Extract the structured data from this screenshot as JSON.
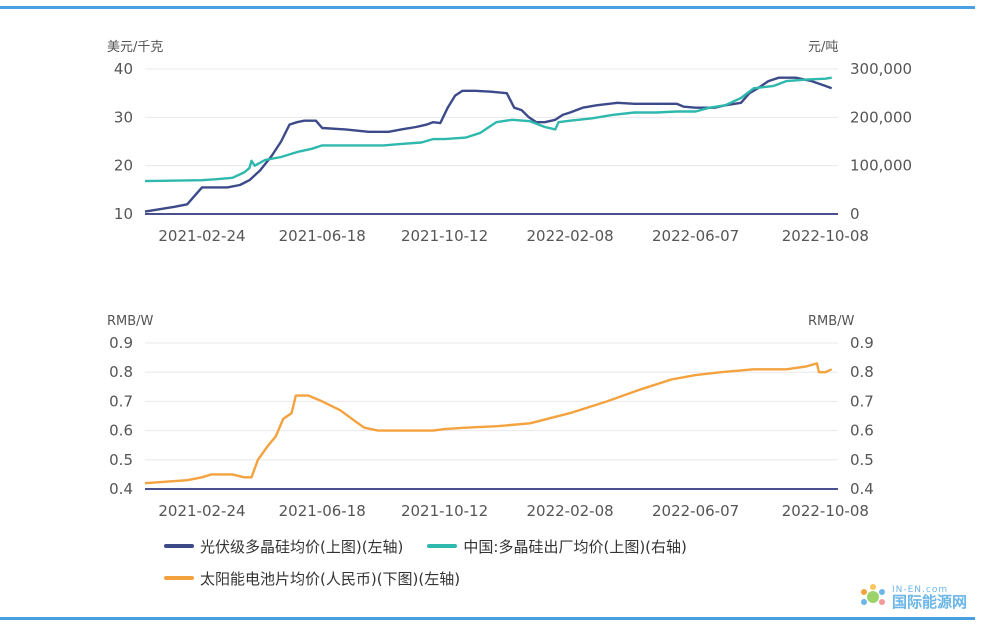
{
  "colors": {
    "rule": "#4a9fe0",
    "polysilicon_cn": "#3d4a8a",
    "polysilicon_export": "#2fb8ad",
    "cell": "#f3a23e",
    "grid": "#e8e8ee"
  },
  "watermark": {
    "brand_small": "IN-EN.com",
    "brand_name": "国际能源网"
  },
  "chart_data": [
    {
      "type": "line",
      "left_unit": "美元/千克",
      "right_unit": "元/吨",
      "left_ticks": [
        "40",
        "30",
        "20",
        "10"
      ],
      "right_ticks": [
        "300,000",
        "200,000",
        "100,000",
        "0"
      ],
      "ylim_left": [
        10,
        40
      ],
      "ylim_right": [
        0,
        300000
      ],
      "x_ticks": [
        "2021-02-24",
        "2021-06-18",
        "2021-10-12",
        "2022-02-08",
        "2022-06-07",
        "2022-10-08"
      ],
      "grid": true,
      "series": [
        {
          "name": "光伏级多晶硅均价(上图)(左轴)",
          "axis": "left",
          "points": [
            [
              "2021-01-01",
              10.5
            ],
            [
              "2021-01-15",
              11
            ],
            [
              "2021-01-29",
              11.5
            ],
            [
              "2021-02-10",
              12
            ],
            [
              "2021-02-18",
              14
            ],
            [
              "2021-02-24",
              15.5
            ],
            [
              "2021-03-20",
              15.5
            ],
            [
              "2021-04-01",
              16
            ],
            [
              "2021-04-10",
              17
            ],
            [
              "2021-04-20",
              19
            ],
            [
              "2021-05-01",
              22
            ],
            [
              "2021-05-10",
              25
            ],
            [
              "2021-05-18",
              28.5
            ],
            [
              "2021-05-25",
              29
            ],
            [
              "2021-06-01",
              29.3
            ],
            [
              "2021-06-12",
              29.3
            ],
            [
              "2021-06-18",
              27.8
            ],
            [
              "2021-07-10",
              27.5
            ],
            [
              "2021-08-01",
              27
            ],
            [
              "2021-08-20",
              27
            ],
            [
              "2021-09-01",
              27.5
            ],
            [
              "2021-09-15",
              28
            ],
            [
              "2021-09-25",
              28.5
            ],
            [
              "2021-10-01",
              29
            ],
            [
              "2021-10-08",
              28.8
            ],
            [
              "2021-10-15",
              32
            ],
            [
              "2021-10-22",
              34.5
            ],
            [
              "2021-10-29",
              35.5
            ],
            [
              "2021-11-10",
              35.5
            ],
            [
              "2021-11-25",
              35.3
            ],
            [
              "2021-12-10",
              35
            ],
            [
              "2021-12-17",
              32
            ],
            [
              "2021-12-24",
              31.5
            ],
            [
              "2021-12-31",
              30
            ],
            [
              "2022-01-07",
              29
            ],
            [
              "2022-01-15",
              29
            ],
            [
              "2022-01-25",
              29.5
            ],
            [
              "2022-02-01",
              30.5
            ],
            [
              "2022-02-08",
              31
            ],
            [
              "2022-02-20",
              32
            ],
            [
              "2022-03-05",
              32.5
            ],
            [
              "2022-03-25",
              33
            ],
            [
              "2022-04-10",
              32.8
            ],
            [
              "2022-05-01",
              32.8
            ],
            [
              "2022-05-20",
              32.8
            ],
            [
              "2022-05-27",
              32.2
            ],
            [
              "2022-06-07",
              32
            ],
            [
              "2022-06-25",
              32
            ],
            [
              "2022-07-05",
              32.5
            ],
            [
              "2022-07-20",
              33
            ],
            [
              "2022-07-28",
              35
            ],
            [
              "2022-08-05",
              36
            ],
            [
              "2022-08-15",
              37.5
            ],
            [
              "2022-08-25",
              38.2
            ],
            [
              "2022-09-10",
              38.2
            ],
            [
              "2022-09-25",
              37.5
            ],
            [
              "2022-10-08",
              36.5
            ],
            [
              "2022-10-14",
              36
            ]
          ]
        },
        {
          "name": "中国:多晶硅出厂均价(上图)(右轴)",
          "axis": "right",
          "points": [
            [
              "2021-01-01",
              68000
            ],
            [
              "2021-02-24",
              70000
            ],
            [
              "2021-03-10",
              72000
            ],
            [
              "2021-03-25",
              75000
            ],
            [
              "2021-04-05",
              86000
            ],
            [
              "2021-04-10",
              95000
            ],
            [
              "2021-04-12",
              110000
            ],
            [
              "2021-04-15",
              100000
            ],
            [
              "2021-04-25",
              112000
            ],
            [
              "2021-05-10",
              118000
            ],
            [
              "2021-05-25",
              128000
            ],
            [
              "2021-06-08",
              135000
            ],
            [
              "2021-06-18",
              142000
            ],
            [
              "2021-07-15",
              142000
            ],
            [
              "2021-08-15",
              142000
            ],
            [
              "2021-09-01",
              145000
            ],
            [
              "2021-09-20",
              148000
            ],
            [
              "2021-10-01",
              155000
            ],
            [
              "2021-10-12",
              155000
            ],
            [
              "2021-11-01",
              158000
            ],
            [
              "2021-11-15",
              168000
            ],
            [
              "2021-11-30",
              190000
            ],
            [
              "2021-12-15",
              195000
            ],
            [
              "2022-01-01",
              192000
            ],
            [
              "2022-01-15",
              180000
            ],
            [
              "2022-01-25",
              175000
            ],
            [
              "2022-01-28",
              190000
            ],
            [
              "2022-02-08",
              193000
            ],
            [
              "2022-03-01",
              198000
            ],
            [
              "2022-03-20",
              205000
            ],
            [
              "2022-04-10",
              210000
            ],
            [
              "2022-05-01",
              210000
            ],
            [
              "2022-05-20",
              212000
            ],
            [
              "2022-06-07",
              212000
            ],
            [
              "2022-06-20",
              220000
            ],
            [
              "2022-07-05",
              225000
            ],
            [
              "2022-07-20",
              240000
            ],
            [
              "2022-08-01",
              260000
            ],
            [
              "2022-08-20",
              265000
            ],
            [
              "2022-09-01",
              275000
            ],
            [
              "2022-09-20",
              278000
            ],
            [
              "2022-10-08",
              280000
            ],
            [
              "2022-10-14",
              282000
            ]
          ]
        }
      ]
    },
    {
      "type": "line",
      "left_unit": "RMB/W",
      "right_unit": "RMB/W",
      "ticks": [
        "0.9",
        "0.8",
        "0.7",
        "0.6",
        "0.5",
        "0.4"
      ],
      "ylim": [
        0.4,
        0.9
      ],
      "x_ticks": [
        "2021-02-24",
        "2021-06-18",
        "2021-10-12",
        "2022-02-08",
        "2022-06-07",
        "2022-10-08"
      ],
      "grid": true,
      "series": [
        {
          "name": "太阳能电池片均价(人民币)(下图)(左轴)",
          "axis": "left",
          "points": [
            [
              "2021-01-01",
              0.42
            ],
            [
              "2021-02-10",
              0.43
            ],
            [
              "2021-02-24",
              0.44
            ],
            [
              "2021-03-05",
              0.45
            ],
            [
              "2021-03-15",
              0.45
            ],
            [
              "2021-03-25",
              0.45
            ],
            [
              "2021-04-05",
              0.44
            ],
            [
              "2021-04-12",
              0.44
            ],
            [
              "2021-04-18",
              0.5
            ],
            [
              "2021-04-28",
              0.55
            ],
            [
              "2021-05-05",
              0.58
            ],
            [
              "2021-05-12",
              0.64
            ],
            [
              "2021-05-20",
              0.66
            ],
            [
              "2021-05-24",
              0.72
            ],
            [
              "2021-06-05",
              0.72
            ],
            [
              "2021-06-18",
              0.7
            ],
            [
              "2021-07-05",
              0.67
            ],
            [
              "2021-07-20",
              0.63
            ],
            [
              "2021-07-28",
              0.61
            ],
            [
              "2021-08-10",
              0.6
            ],
            [
              "2021-09-01",
              0.6
            ],
            [
              "2021-10-01",
              0.6
            ],
            [
              "2021-10-12",
              0.605
            ],
            [
              "2021-11-01",
              0.61
            ],
            [
              "2021-12-01",
              0.615
            ],
            [
              "2022-01-01",
              0.625
            ],
            [
              "2022-02-08",
              0.66
            ],
            [
              "2022-03-15",
              0.7
            ],
            [
              "2022-04-15",
              0.74
            ],
            [
              "2022-05-15",
              0.775
            ],
            [
              "2022-06-07",
              0.79
            ],
            [
              "2022-07-01",
              0.8
            ],
            [
              "2022-08-01",
              0.81
            ],
            [
              "2022-09-01",
              0.81
            ],
            [
              "2022-09-20",
              0.82
            ],
            [
              "2022-09-30",
              0.83
            ],
            [
              "2022-10-02",
              0.8
            ],
            [
              "2022-10-08",
              0.8
            ],
            [
              "2022-10-14",
              0.81
            ]
          ]
        }
      ]
    }
  ]
}
